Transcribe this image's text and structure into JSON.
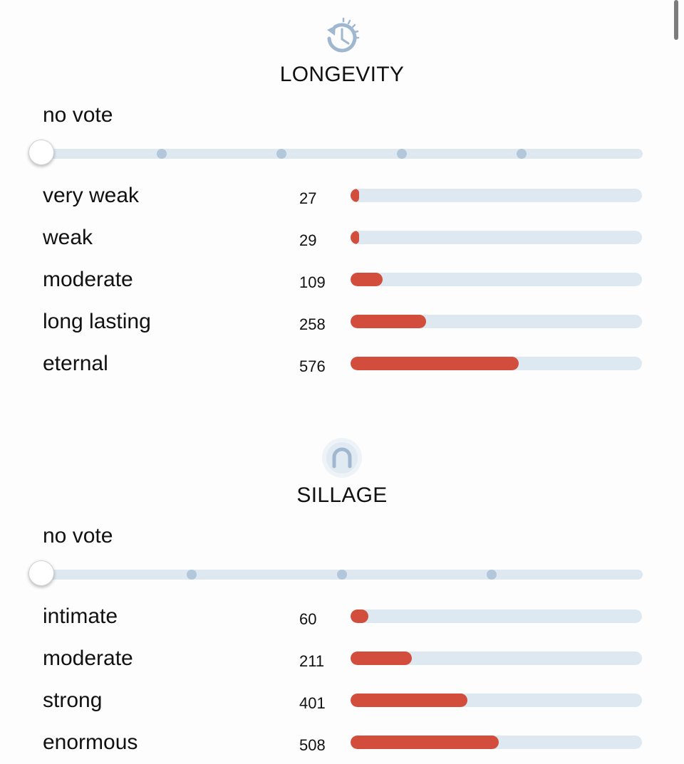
{
  "sections": [
    {
      "id": "longevity",
      "title": "LONGEVITY",
      "icon": "clock-rewind-icon",
      "vote_status": "no vote",
      "slider_stops": 6,
      "selected_stop": 0,
      "max_count": 1000,
      "rows": [
        {
          "label": "very weak",
          "count": "27"
        },
        {
          "label": "weak",
          "count": "29"
        },
        {
          "label": "moderate",
          "count": "109"
        },
        {
          "label": "long lasting",
          "count": "258"
        },
        {
          "label": "eternal",
          "count": "576"
        }
      ]
    },
    {
      "id": "sillage",
      "title": "SILLAGE",
      "icon": "sillage-wave-icon",
      "vote_status": "no vote",
      "slider_stops": 5,
      "selected_stop": 0,
      "max_count": 1000,
      "rows": [
        {
          "label": "intimate",
          "count": "60"
        },
        {
          "label": "moderate",
          "count": "211"
        },
        {
          "label": "strong",
          "count": "401"
        },
        {
          "label": "enormous",
          "count": "508"
        }
      ]
    }
  ],
  "colors": {
    "bar_fill": "#d24d3b",
    "bar_track": "#dde8f1",
    "icon": "#9fb8cf"
  }
}
